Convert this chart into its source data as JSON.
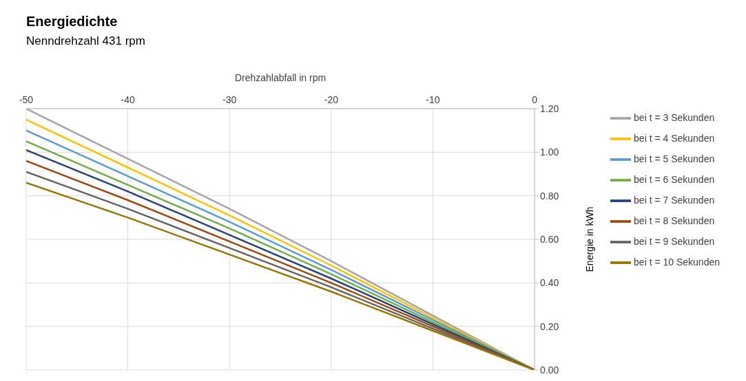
{
  "chart_data": {
    "type": "line",
    "title": "Energiedichte",
    "subtitle": "Nenndrehzahl 431 rpm",
    "xlabel": "Drehzahlabfall in rpm",
    "ylabel": "Energie in kWh",
    "x": [
      -50,
      -40,
      -30,
      -20,
      -10,
      0
    ],
    "series": [
      {
        "name": "bei t = 3 Sekunden",
        "color": "#a5a5a5",
        "values": [
          1.2,
          0.97,
          0.74,
          0.5,
          0.25,
          0
        ]
      },
      {
        "name": "bei t = 4 Sekunden",
        "color": "#ffc000",
        "values": [
          1.15,
          0.93,
          0.71,
          0.48,
          0.24,
          0
        ]
      },
      {
        "name": "bei t = 5 Sekunden",
        "color": "#5b9bd5",
        "values": [
          1.1,
          0.89,
          0.68,
          0.46,
          0.23,
          0
        ]
      },
      {
        "name": "bei t = 6 Sekunden",
        "color": "#70ad47",
        "values": [
          1.05,
          0.85,
          0.65,
          0.44,
          0.22,
          0
        ]
      },
      {
        "name": "bei t = 7 Sekunden",
        "color": "#264478",
        "values": [
          1.01,
          0.82,
          0.62,
          0.42,
          0.21,
          0
        ]
      },
      {
        "name": "bei t = 8 Sekunden",
        "color": "#9e480e",
        "values": [
          0.96,
          0.78,
          0.59,
          0.4,
          0.2,
          0
        ]
      },
      {
        "name": "bei t = 9 Sekunden",
        "color": "#636363",
        "values": [
          0.91,
          0.74,
          0.56,
          0.38,
          0.19,
          0
        ]
      },
      {
        "name": "bei t = 10 Sekunden",
        "color": "#997300",
        "values": [
          0.86,
          0.7,
          0.53,
          0.36,
          0.18,
          0
        ]
      }
    ],
    "xlim": [
      -50,
      0
    ],
    "xticks": [
      -50,
      -40,
      -30,
      -20,
      -10,
      0
    ],
    "ylim": [
      0,
      1.2
    ],
    "yticks": [
      {
        "value": 0,
        "label": "0.00"
      },
      {
        "value": 0.2,
        "label": "0.20"
      },
      {
        "value": 0.4,
        "label": "0.40"
      },
      {
        "value": 0.6,
        "label": "0.60"
      },
      {
        "value": 0.8,
        "label": "0.80"
      },
      {
        "value": 1.0,
        "label": "1.00"
      },
      {
        "value": 1.2,
        "label": "1.20"
      }
    ],
    "grid": true,
    "legend": "right",
    "marker": "none",
    "line_style": "solid"
  }
}
